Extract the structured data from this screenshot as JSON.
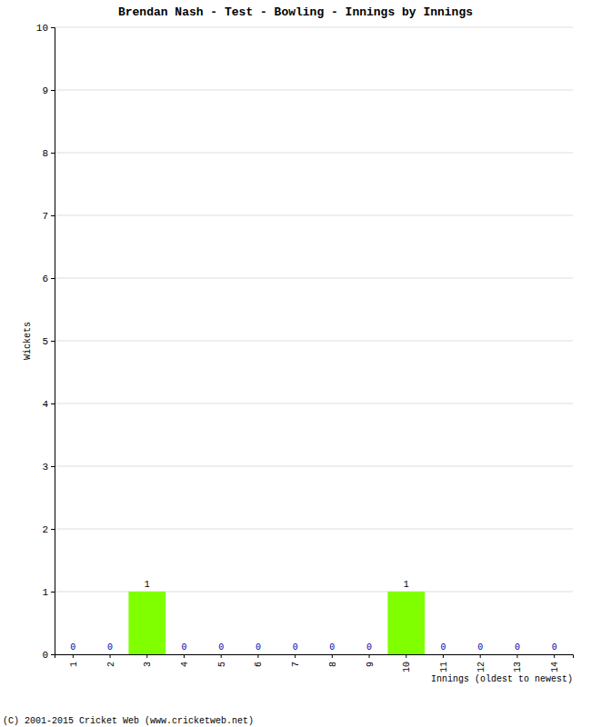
{
  "chart_data": {
    "type": "bar",
    "title": "Brendan Nash - Test - Bowling - Innings by Innings",
    "x_label": "Innings (oldest to newest)",
    "y_label": "Wickets",
    "annotations": [
      "(C) 2001-2015 Cricket Web (www.cricketweb.net)"
    ],
    "categories": [
      "1",
      "2",
      "3",
      "4",
      "5",
      "6",
      "7",
      "8",
      "9",
      "10",
      "11",
      "12",
      "13",
      "14"
    ],
    "values": [
      0,
      0,
      1,
      0,
      0,
      0,
      0,
      0,
      0,
      1,
      0,
      0,
      0,
      0
    ],
    "color": "#7fff00",
    "ylim": [
      0,
      10
    ],
    "yticks": [
      0,
      1,
      2,
      3,
      4,
      5,
      6,
      7,
      8,
      9,
      10
    ],
    "grid": true,
    "data_labels": true
  }
}
